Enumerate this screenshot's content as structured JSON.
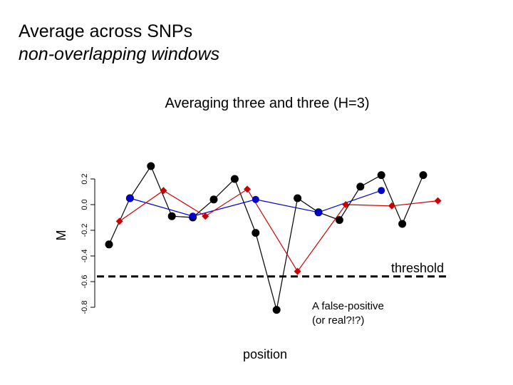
{
  "slide": {
    "title_line1": "Average across SNPs",
    "title_line2": "non-overlapping windows"
  },
  "chart_data": {
    "type": "line",
    "title": "Averaging three and three (H=3)",
    "xlabel": "position",
    "ylabel": "M",
    "ylim": [
      -0.8,
      0.2
    ],
    "yticks": [
      -0.8,
      -0.6,
      -0.4,
      -0.2,
      0.0,
      0.2
    ],
    "ytick_labels": [
      "-0.8",
      "-0.6",
      "-0.4",
      "-0.2",
      "0.0",
      "0.2"
    ],
    "x": [
      1,
      2,
      3,
      4,
      5,
      6,
      7,
      8,
      9,
      10,
      11,
      12,
      13,
      14,
      15,
      16
    ],
    "series": [
      {
        "color": "#000000",
        "marker": "circle",
        "x": [
          1,
          2,
          3,
          4,
          5,
          6,
          7,
          8,
          9,
          10,
          11,
          12,
          13,
          14,
          15,
          16
        ],
        "values": [
          -0.31,
          0.05,
          0.3,
          -0.09,
          -0.1,
          0.04,
          0.2,
          -0.22,
          -0.82,
          0.05,
          -0.06,
          -0.12,
          0.14,
          0.23,
          -0.15,
          0.23
        ]
      },
      {
        "color": "#0000cc",
        "marker": "circle",
        "x": [
          2,
          5,
          8,
          11,
          14
        ],
        "values": [
          0.05,
          -0.09,
          0.04,
          -0.06,
          0.11
        ]
      },
      {
        "color": "#cc0000",
        "marker": "diamond",
        "x": [
          1.5,
          3.6,
          5.6,
          7.6,
          10,
          12.3,
          14.5,
          16.7
        ],
        "values": [
          -0.13,
          0.11,
          -0.09,
          0.12,
          -0.52,
          0.0,
          -0.01,
          0.03
        ]
      }
    ],
    "threshold": {
      "value": -0.56,
      "label": "threshold",
      "color": "#000000",
      "style": "dashed"
    },
    "annotation": {
      "line1": "A false-positive",
      "line2": "(or real?!?)"
    }
  }
}
